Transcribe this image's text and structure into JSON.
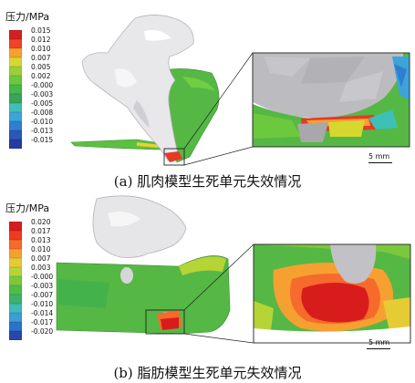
{
  "panel_a": {
    "legend_title": "压力/MPa",
    "legend_values": [
      "0.015",
      "0.012",
      "0.010",
      "0.007",
      "0.005",
      "0.002",
      "-0.000",
      "-0.003",
      "-0.005",
      "-0.008",
      "-0.010",
      "-0.013",
      "-0.015"
    ],
    "legend_colors": [
      "#d02020",
      "#f04428",
      "#f6a030",
      "#d6d830",
      "#9cd03a",
      "#6cc83c",
      "#44b848",
      "#3aa458",
      "#3ec0b8",
      "#3ca4d8",
      "#2f7fd0",
      "#2a58b8",
      "#263ca0"
    ],
    "scale_label": "5 mm",
    "caption": "(a) 肌肉模型生死单元失效情况"
  },
  "panel_b": {
    "legend_title": "压力/MPa",
    "legend_values": [
      "0.020",
      "0.017",
      "0.013",
      "0.010",
      "0.007",
      "0.003",
      "-0.000",
      "-0.003",
      "-0.007",
      "-0.010",
      "-0.014",
      "-0.017",
      "-0.020"
    ],
    "legend_colors": [
      "#d81c1c",
      "#ee3a24",
      "#f66a2c",
      "#f6a032",
      "#e6cc34",
      "#b6d436",
      "#7cc83c",
      "#50bc44",
      "#3eb070",
      "#40bcb8",
      "#3a9ed6",
      "#2e72c8",
      "#2848a8"
    ],
    "scale_label": "5 mm",
    "caption": "(b) 脂肪模型生死单元失效情况"
  }
}
